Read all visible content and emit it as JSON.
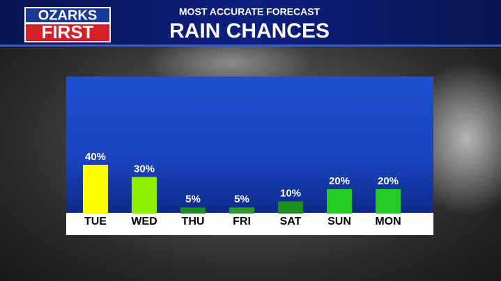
{
  "logo": {
    "line1": "OZARKS",
    "line2": "FIRST"
  },
  "chart_data": {
    "type": "bar",
    "subtitle": "MOST ACCURATE FORECAST",
    "title": "RAIN CHANCES",
    "categories": [
      "TUE",
      "WED",
      "THU",
      "FRI",
      "SAT",
      "SUN",
      "MON"
    ],
    "values": [
      40,
      30,
      5,
      5,
      10,
      20,
      20
    ],
    "value_labels": [
      "40%",
      "30%",
      "5%",
      "5%",
      "10%",
      "20%",
      "20%"
    ],
    "colors": [
      "#ffff00",
      "#8ef000",
      "#1f8a1f",
      "#2a9a2a",
      "#1f8f1f",
      "#22cc22",
      "#22cc22"
    ],
    "ylim": [
      0,
      100
    ]
  }
}
